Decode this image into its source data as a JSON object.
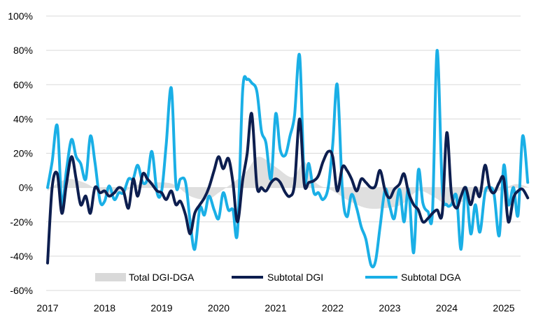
{
  "chart_data": {
    "type": "line",
    "ylim": [
      -60,
      100
    ],
    "xlim": [
      2017,
      2025.75
    ],
    "y_ticks": [
      "100%",
      "80%",
      "60%",
      "40%",
      "20%",
      "0%",
      "-20%",
      "-40%",
      "-60%"
    ],
    "y_tick_values": [
      100,
      80,
      60,
      40,
      20,
      0,
      -20,
      -40,
      -60
    ],
    "x_ticks": [
      "2017",
      "2018",
      "2019",
      "2020",
      "2021",
      "2022",
      "2023",
      "2024",
      "2025"
    ],
    "x_tick_values": [
      2017,
      2018,
      2019,
      2020,
      2021,
      2022,
      2023,
      2024,
      2025
    ],
    "grid": "horizontal",
    "legend_position": "bottom-center",
    "colors": {
      "total": "#d9d9d9",
      "dgi": "#0d1e4f",
      "dga": "#1aafe6",
      "grid": "#d9d9d9"
    },
    "series": [
      {
        "name": "Total DGI-DGA",
        "style": "area",
        "x": [
          2017,
          2017.2,
          2017.4,
          2017.7,
          2018,
          2018.3,
          2018.6,
          2018.9,
          2019.2,
          2019.5,
          2019.8,
          2020,
          2020.3,
          2020.5,
          2020.7,
          2021,
          2021.3,
          2021.5,
          2021.7,
          2022,
          2022.3,
          2022.6,
          2022.9,
          2023.2,
          2023.5,
          2023.8,
          2024,
          2024.3,
          2024.6,
          2024.9,
          2025.2,
          2025.45
        ],
        "values": [
          -2,
          3,
          5,
          2,
          -4,
          -3,
          2,
          3,
          2,
          -5,
          -7,
          -3,
          4,
          10,
          18,
          12,
          6,
          15,
          3,
          -2,
          -8,
          -12,
          -12,
          -10,
          -2,
          -6,
          -10,
          -8,
          -3,
          -2,
          2,
          0
        ]
      },
      {
        "name": "Subtotal DGI",
        "style": "line",
        "x": [
          2017,
          2017.08,
          2017.17,
          2017.25,
          2017.33,
          2017.42,
          2017.5,
          2017.58,
          2017.67,
          2017.75,
          2017.83,
          2017.92,
          2018,
          2018.08,
          2018.17,
          2018.25,
          2018.33,
          2018.42,
          2018.5,
          2018.58,
          2018.67,
          2018.75,
          2018.83,
          2018.92,
          2019,
          2019.08,
          2019.17,
          2019.25,
          2019.33,
          2019.42,
          2019.5,
          2019.58,
          2019.67,
          2019.75,
          2019.83,
          2019.92,
          2020,
          2020.08,
          2020.17,
          2020.25,
          2020.33,
          2020.42,
          2020.5,
          2020.58,
          2020.67,
          2020.75,
          2020.83,
          2020.92,
          2021,
          2021.08,
          2021.17,
          2021.25,
          2021.33,
          2021.42,
          2021.5,
          2021.58,
          2021.67,
          2021.75,
          2021.83,
          2021.92,
          2022,
          2022.08,
          2022.17,
          2022.25,
          2022.33,
          2022.42,
          2022.5,
          2022.58,
          2022.67,
          2022.75,
          2022.83,
          2022.92,
          2023,
          2023.08,
          2023.17,
          2023.25,
          2023.33,
          2023.42,
          2023.5,
          2023.58,
          2023.67,
          2023.75,
          2023.83,
          2023.92,
          2024,
          2024.08,
          2024.17,
          2024.25,
          2024.33,
          2024.42,
          2024.5,
          2024.58,
          2024.67,
          2024.75,
          2024.83,
          2024.92,
          2025,
          2025.08,
          2025.17,
          2025.25,
          2025.33,
          2025.42
        ],
        "values": [
          -44,
          0,
          8,
          -15,
          2,
          18,
          5,
          -10,
          -5,
          -15,
          0,
          -3,
          -2,
          -5,
          -3,
          0,
          -2,
          -12,
          5,
          -5,
          8,
          5,
          2,
          -2,
          -3,
          -7,
          -2,
          -10,
          -8,
          -16,
          -27,
          -15,
          -10,
          -6,
          0,
          10,
          18,
          11,
          17,
          3,
          -20,
          4,
          20,
          43,
          1,
          0,
          -2,
          3,
          5,
          3,
          -3,
          -5,
          2,
          40,
          2,
          3,
          4,
          7,
          15,
          21,
          18,
          -2,
          12,
          10,
          5,
          -2,
          5,
          3,
          0,
          1,
          10,
          -2,
          -6,
          -1,
          2,
          8,
          -3,
          -10,
          -13,
          -20,
          -18,
          -15,
          -13,
          -15,
          32,
          -3,
          -12,
          -5,
          0,
          -10,
          0,
          -5,
          13,
          0,
          -3,
          3,
          5,
          -20,
          -6,
          -2,
          -1,
          -6
        ]
      },
      {
        "name": "Subtotal DGA",
        "style": "line",
        "x": [
          2017,
          2017.08,
          2017.17,
          2017.25,
          2017.33,
          2017.42,
          2017.5,
          2017.58,
          2017.67,
          2017.75,
          2017.83,
          2017.92,
          2018,
          2018.08,
          2018.17,
          2018.25,
          2018.33,
          2018.42,
          2018.5,
          2018.58,
          2018.67,
          2018.75,
          2018.83,
          2018.92,
          2019,
          2019.08,
          2019.17,
          2019.25,
          2019.33,
          2019.42,
          2019.5,
          2019.58,
          2019.67,
          2019.75,
          2019.83,
          2019.92,
          2020,
          2020.08,
          2020.17,
          2020.25,
          2020.33,
          2020.42,
          2020.5,
          2020.58,
          2020.67,
          2020.75,
          2020.83,
          2020.92,
          2021,
          2021.08,
          2021.17,
          2021.25,
          2021.33,
          2021.42,
          2021.5,
          2021.58,
          2021.67,
          2021.75,
          2021.83,
          2021.92,
          2022,
          2022.08,
          2022.17,
          2022.25,
          2022.33,
          2022.42,
          2022.5,
          2022.58,
          2022.67,
          2022.75,
          2022.83,
          2022.92,
          2023,
          2023.08,
          2023.17,
          2023.25,
          2023.33,
          2023.42,
          2023.5,
          2023.58,
          2023.67,
          2023.75,
          2023.83,
          2023.92,
          2024,
          2024.08,
          2024.17,
          2024.25,
          2024.33,
          2024.42,
          2024.5,
          2024.58,
          2024.67,
          2024.75,
          2024.83,
          2024.92,
          2025,
          2025.08,
          2025.17,
          2025.25,
          2025.33,
          2025.42
        ],
        "values": [
          0,
          15,
          36,
          -10,
          10,
          28,
          18,
          14,
          5,
          30,
          15,
          -8,
          -8,
          1,
          -7,
          -3,
          -3,
          5,
          5,
          13,
          3,
          5,
          21,
          -3,
          -2,
          25,
          58,
          2,
          5,
          3,
          -20,
          -36,
          -12,
          -16,
          -5,
          -13,
          -18,
          -3,
          -13,
          -13,
          -26,
          56,
          63,
          61,
          56,
          33,
          26,
          5,
          43,
          22,
          19,
          30,
          42,
          77,
          5,
          14,
          -3,
          -3,
          -7,
          0,
          25,
          60,
          -2,
          -17,
          -4,
          -12,
          -23,
          -30,
          -45,
          -43,
          -23,
          -1,
          -11,
          -18,
          -1,
          -20,
          -1,
          -38,
          10,
          -9,
          -14,
          -14,
          80,
          0,
          -10,
          -10,
          -5,
          -36,
          0,
          -27,
          -10,
          -26,
          -3,
          0,
          -4,
          -28,
          13,
          -10,
          0,
          -16,
          30,
          3
        ]
      }
    ]
  }
}
